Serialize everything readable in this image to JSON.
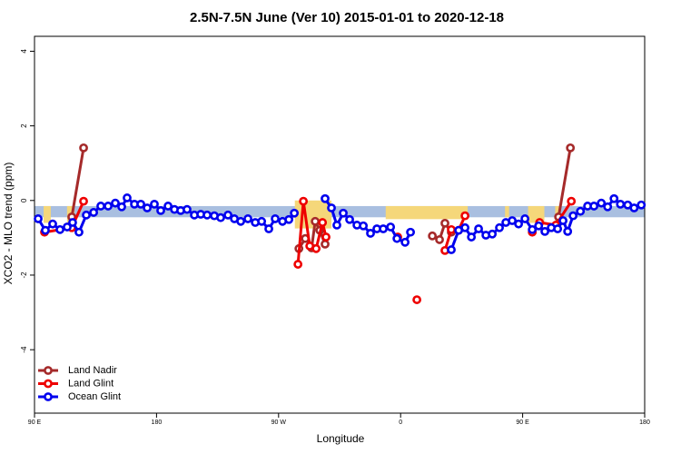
{
  "chart_data": {
    "type": "line",
    "title": "2.5N-7.5N June (Ver 10)   2015-01-01 to 2020-12-18",
    "xlabel": "Longitude",
    "ylabel": "XCO2 - MLO trend (ppm)",
    "xlim": [
      90,
      540
    ],
    "ylim": [
      -5.7,
      4.4
    ],
    "xticks": [
      {
        "value": 90,
        "label": "90 E"
      },
      180,
      {
        "value": 270,
        "label": "90 W"
      },
      {
        "value": 360,
        "label": "0"
      },
      {
        "value": 450,
        "label": "90 E"
      },
      {
        "value": 540,
        "label": "180"
      }
    ],
    "yticks": [
      -4,
      -2,
      0,
      2,
      4
    ],
    "band": {
      "ylim": [
        -0.45,
        -0.15
      ],
      "color": "#a9bfe0"
    },
    "land_color": "#f5d77a",
    "land_regions": [
      {
        "x": [
          96.7,
          102
        ],
        "y": [
          -0.6,
          -0.15
        ]
      },
      {
        "x": [
          114,
          119.5
        ],
        "y": [
          -0.6,
          -0.15
        ]
      },
      {
        "x": [
          282,
          309
        ],
        "y": [
          -0.75,
          0
        ]
      },
      {
        "x": [
          349,
          409.5
        ],
        "y": [
          -0.5,
          -0.15
        ]
      },
      {
        "x": [
          437,
          440
        ],
        "y": [
          -0.45,
          -0.15
        ]
      },
      {
        "x": [
          454,
          466
        ],
        "y": [
          -0.6,
          -0.15
        ]
      },
      {
        "x": [
          474,
          478
        ],
        "y": [
          -0.6,
          -0.15
        ]
      }
    ],
    "legend": "bottom-left",
    "series": [
      {
        "name": "Land Nadir",
        "color": "#a52a2a",
        "x": [
          117.5,
          126.2,
          null,
          285.0,
          289.7,
          294.4,
          297.0,
          300.4,
          304.3,
          null,
          383.4,
          388.7,
          392.7,
          397.4,
          null,
          476.5,
          485.2
        ],
        "values": [
          -0.44,
          1.41,
          null,
          -1.29,
          -1.02,
          -1.27,
          -0.56,
          -0.8,
          -1.17,
          null,
          -0.95,
          -1.05,
          -0.61,
          -0.85,
          null,
          -0.44,
          1.41
        ]
      },
      {
        "name": "Land Glint",
        "color": "#ee0000",
        "x": [
          97.4,
          117.5,
          126.2,
          null,
          284.3,
          288.3,
          293.0,
          297.7,
          302.4,
          305.0,
          null,
          357.9,
          null,
          372.0,
          null,
          392.7,
          397.4,
          402.8,
          407.5,
          null,
          457.1,
          462.5,
          474.5,
          485.9
        ],
        "values": [
          -0.85,
          -0.73,
          -0.02,
          null,
          -1.71,
          -0.02,
          -1.22,
          -1.29,
          -0.59,
          -0.98,
          null,
          -0.98,
          null,
          -2.66,
          null,
          -1.34,
          -0.78,
          -0.8,
          -0.41,
          null,
          -0.85,
          -0.59,
          -0.66,
          -0.02
        ]
      },
      {
        "name": "Ocean Glint",
        "color": "#0000ee",
        "x": [
          92.7,
          98.0,
          103.4,
          108.8,
          114.1,
          118.1,
          122.8,
          128.2,
          133.6,
          138.9,
          144.3,
          149.6,
          154.3,
          158.3,
          163.7,
          168.4,
          173.1,
          178.4,
          183.1,
          188.5,
          193.2,
          197.8,
          202.5,
          207.9,
          212.6,
          217.3,
          222.6,
          227.3,
          232.7,
          237.4,
          242.1,
          247.4,
          252.8,
          257.5,
          262.8,
          267.5,
          272.9,
          277.6,
          281.6,
          null,
          304.3,
          309.0,
          313.0,
          317.7,
          322.4,
          327.8,
          332.5,
          337.8,
          342.5,
          347.2,
          352.6,
          357.3,
          363.3,
          367.3,
          null,
          397.4,
          402.8,
          407.5,
          412.2,
          417.5,
          422.9,
          427.6,
          432.9,
          437.6,
          442.3,
          447.0,
          451.7,
          457.1,
          461.8,
          466.4,
          471.1,
          475.8,
          479.8,
          483.2,
          487.2,
          492.6,
          497.9,
          502.6,
          508.0,
          512.7,
          517.4,
          522.1,
          527.5,
          532.2,
          537.5
        ],
        "values": [
          -0.49,
          -0.8,
          -0.63,
          -0.78,
          -0.71,
          -0.59,
          -0.85,
          -0.39,
          -0.32,
          -0.15,
          -0.15,
          -0.07,
          -0.17,
          0.07,
          -0.1,
          -0.1,
          -0.2,
          -0.1,
          -0.27,
          -0.15,
          -0.24,
          -0.27,
          -0.24,
          -0.39,
          -0.37,
          -0.39,
          -0.41,
          -0.46,
          -0.39,
          -0.49,
          -0.56,
          -0.49,
          -0.59,
          -0.56,
          -0.76,
          -0.49,
          -0.56,
          -0.51,
          -0.34,
          null,
          0.05,
          -0.2,
          -0.66,
          -0.34,
          -0.51,
          -0.66,
          -0.68,
          -0.88,
          -0.76,
          -0.76,
          -0.71,
          -1.02,
          -1.12,
          -0.85,
          null,
          -1.32,
          -0.8,
          -0.73,
          -0.98,
          -0.76,
          -0.93,
          -0.9,
          -0.73,
          -0.59,
          -0.54,
          -0.63,
          -0.49,
          -0.78,
          -0.68,
          -0.83,
          -0.73,
          -0.76,
          -0.54,
          -0.83,
          -0.41,
          -0.29,
          -0.15,
          -0.15,
          -0.07,
          -0.17,
          0.05,
          -0.1,
          -0.12,
          -0.2,
          -0.12
        ]
      }
    ]
  }
}
